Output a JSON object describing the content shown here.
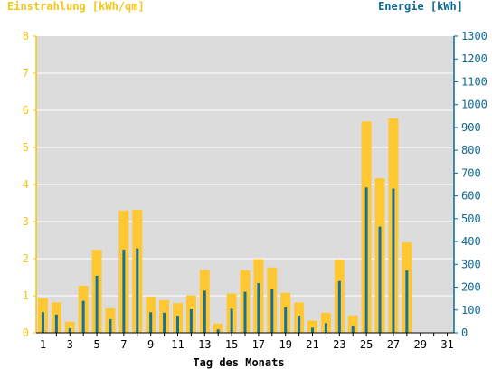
{
  "colors": {
    "background": "#ffffff",
    "plot_area": "#dcdcdc",
    "grid": "#ffffff",
    "left_axis": "#f5c518",
    "right_axis": "#0b6a94",
    "bar_outer": "#ffc833",
    "bar_inner": "#13729b",
    "text": "#000000"
  },
  "chart_data": {
    "type": "bar",
    "title_left": "Einstrahlung [kWh/qm]",
    "title_right": "Energie [kWh]",
    "xlabel": "Tag des Monats",
    "x": [
      1,
      2,
      3,
      4,
      5,
      6,
      7,
      8,
      9,
      10,
      11,
      12,
      13,
      14,
      15,
      16,
      17,
      18,
      19,
      20,
      21,
      22,
      23,
      24,
      25,
      26,
      27,
      28,
      29,
      30,
      31
    ],
    "x_tick_labels": [
      "1",
      "3",
      "5",
      "7",
      "9",
      "11",
      "13",
      "15",
      "17",
      "19",
      "21",
      "23",
      "25",
      "27",
      "29",
      "31"
    ],
    "left_axis": {
      "ylim": [
        0,
        8
      ],
      "ticks": [
        "0",
        "1",
        "2",
        "3",
        "4",
        "5",
        "6",
        "7",
        "8"
      ]
    },
    "right_axis": {
      "ylim": [
        0,
        1300
      ],
      "ticks": [
        "0",
        "100",
        "200",
        "300",
        "400",
        "500",
        "600",
        "700",
        "800",
        "900",
        "1000",
        "1100",
        "1200",
        "1300"
      ]
    },
    "grid": true,
    "series": [
      {
        "name": "Einstrahlung [kWh/qm]",
        "axis": "left",
        "values": [
          0.93,
          0.82,
          0.3,
          1.27,
          2.24,
          0.66,
          3.3,
          3.32,
          0.98,
          0.88,
          0.8,
          1.01,
          1.7,
          0.25,
          1.06,
          1.69,
          1.99,
          1.76,
          1.08,
          0.82,
          0.33,
          0.54,
          1.97,
          0.47,
          5.7,
          4.17,
          5.78,
          2.44,
          0,
          0,
          0
        ]
      },
      {
        "name": "Energie [kWh]",
        "axis": "right",
        "values": [
          90,
          80,
          20,
          140,
          250,
          60,
          365,
          370,
          90,
          88,
          75,
          103,
          185,
          15,
          105,
          180,
          218,
          190,
          112,
          75,
          22,
          42,
          227,
          32,
          637,
          465,
          632,
          273,
          0,
          0,
          0
        ]
      }
    ]
  }
}
